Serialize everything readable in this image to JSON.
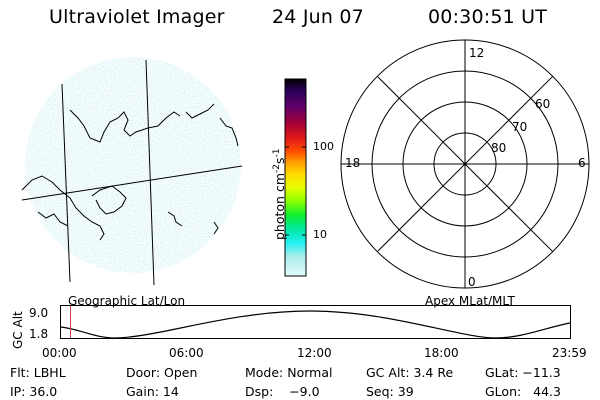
{
  "header": {
    "title": "Ultraviolet Imager",
    "date": "24 Jun 07",
    "time": "00:30:51 UT"
  },
  "geo_panel": {
    "caption": "Geographic Lat/Lon"
  },
  "apex_panel": {
    "caption": "Apex MLat/MLT",
    "mlt_labels": {
      "top": "12",
      "left": "18",
      "right": "6",
      "bottom": "0"
    },
    "lat_labels": [
      "60",
      "70",
      "80"
    ]
  },
  "colorbar": {
    "unit_label": "photon cm",
    "unit_exp1": "-2",
    "unit_s": "s",
    "unit_exp2": "-1",
    "ticks": [
      "100",
      "10"
    ],
    "colors": [
      "#000000",
      "#2a0050",
      "#500060",
      "#80002a",
      "#b80020",
      "#e01818",
      "#ff4000",
      "#ff8c00",
      "#ffc000",
      "#ffff00",
      "#c8ff00",
      "#7cff00",
      "#00ff20",
      "#00e890",
      "#00ffff",
      "#40ffff",
      "#b0f0f0",
      "#e0ffff"
    ]
  },
  "altitude_plot": {
    "ylabel": "GC Alt",
    "yticks": [
      "9.0",
      "1.8"
    ],
    "xticks": [
      "00:00",
      "06:00",
      "12:00",
      "18:00",
      "23:59"
    ]
  },
  "info": {
    "filter": "Flt: LBHL",
    "door": "Door: Open",
    "mode": "Mode: Normal",
    "gc_alt": "GC Alt: 3.4 Re",
    "glat": "GLat: −11.3",
    "ip": "IP: 36.0",
    "gain": "Gain: 14",
    "dsp": "Dsp:    −9.0",
    "seq": "Seq: 39",
    "glon": "GLon:   44.3"
  }
}
